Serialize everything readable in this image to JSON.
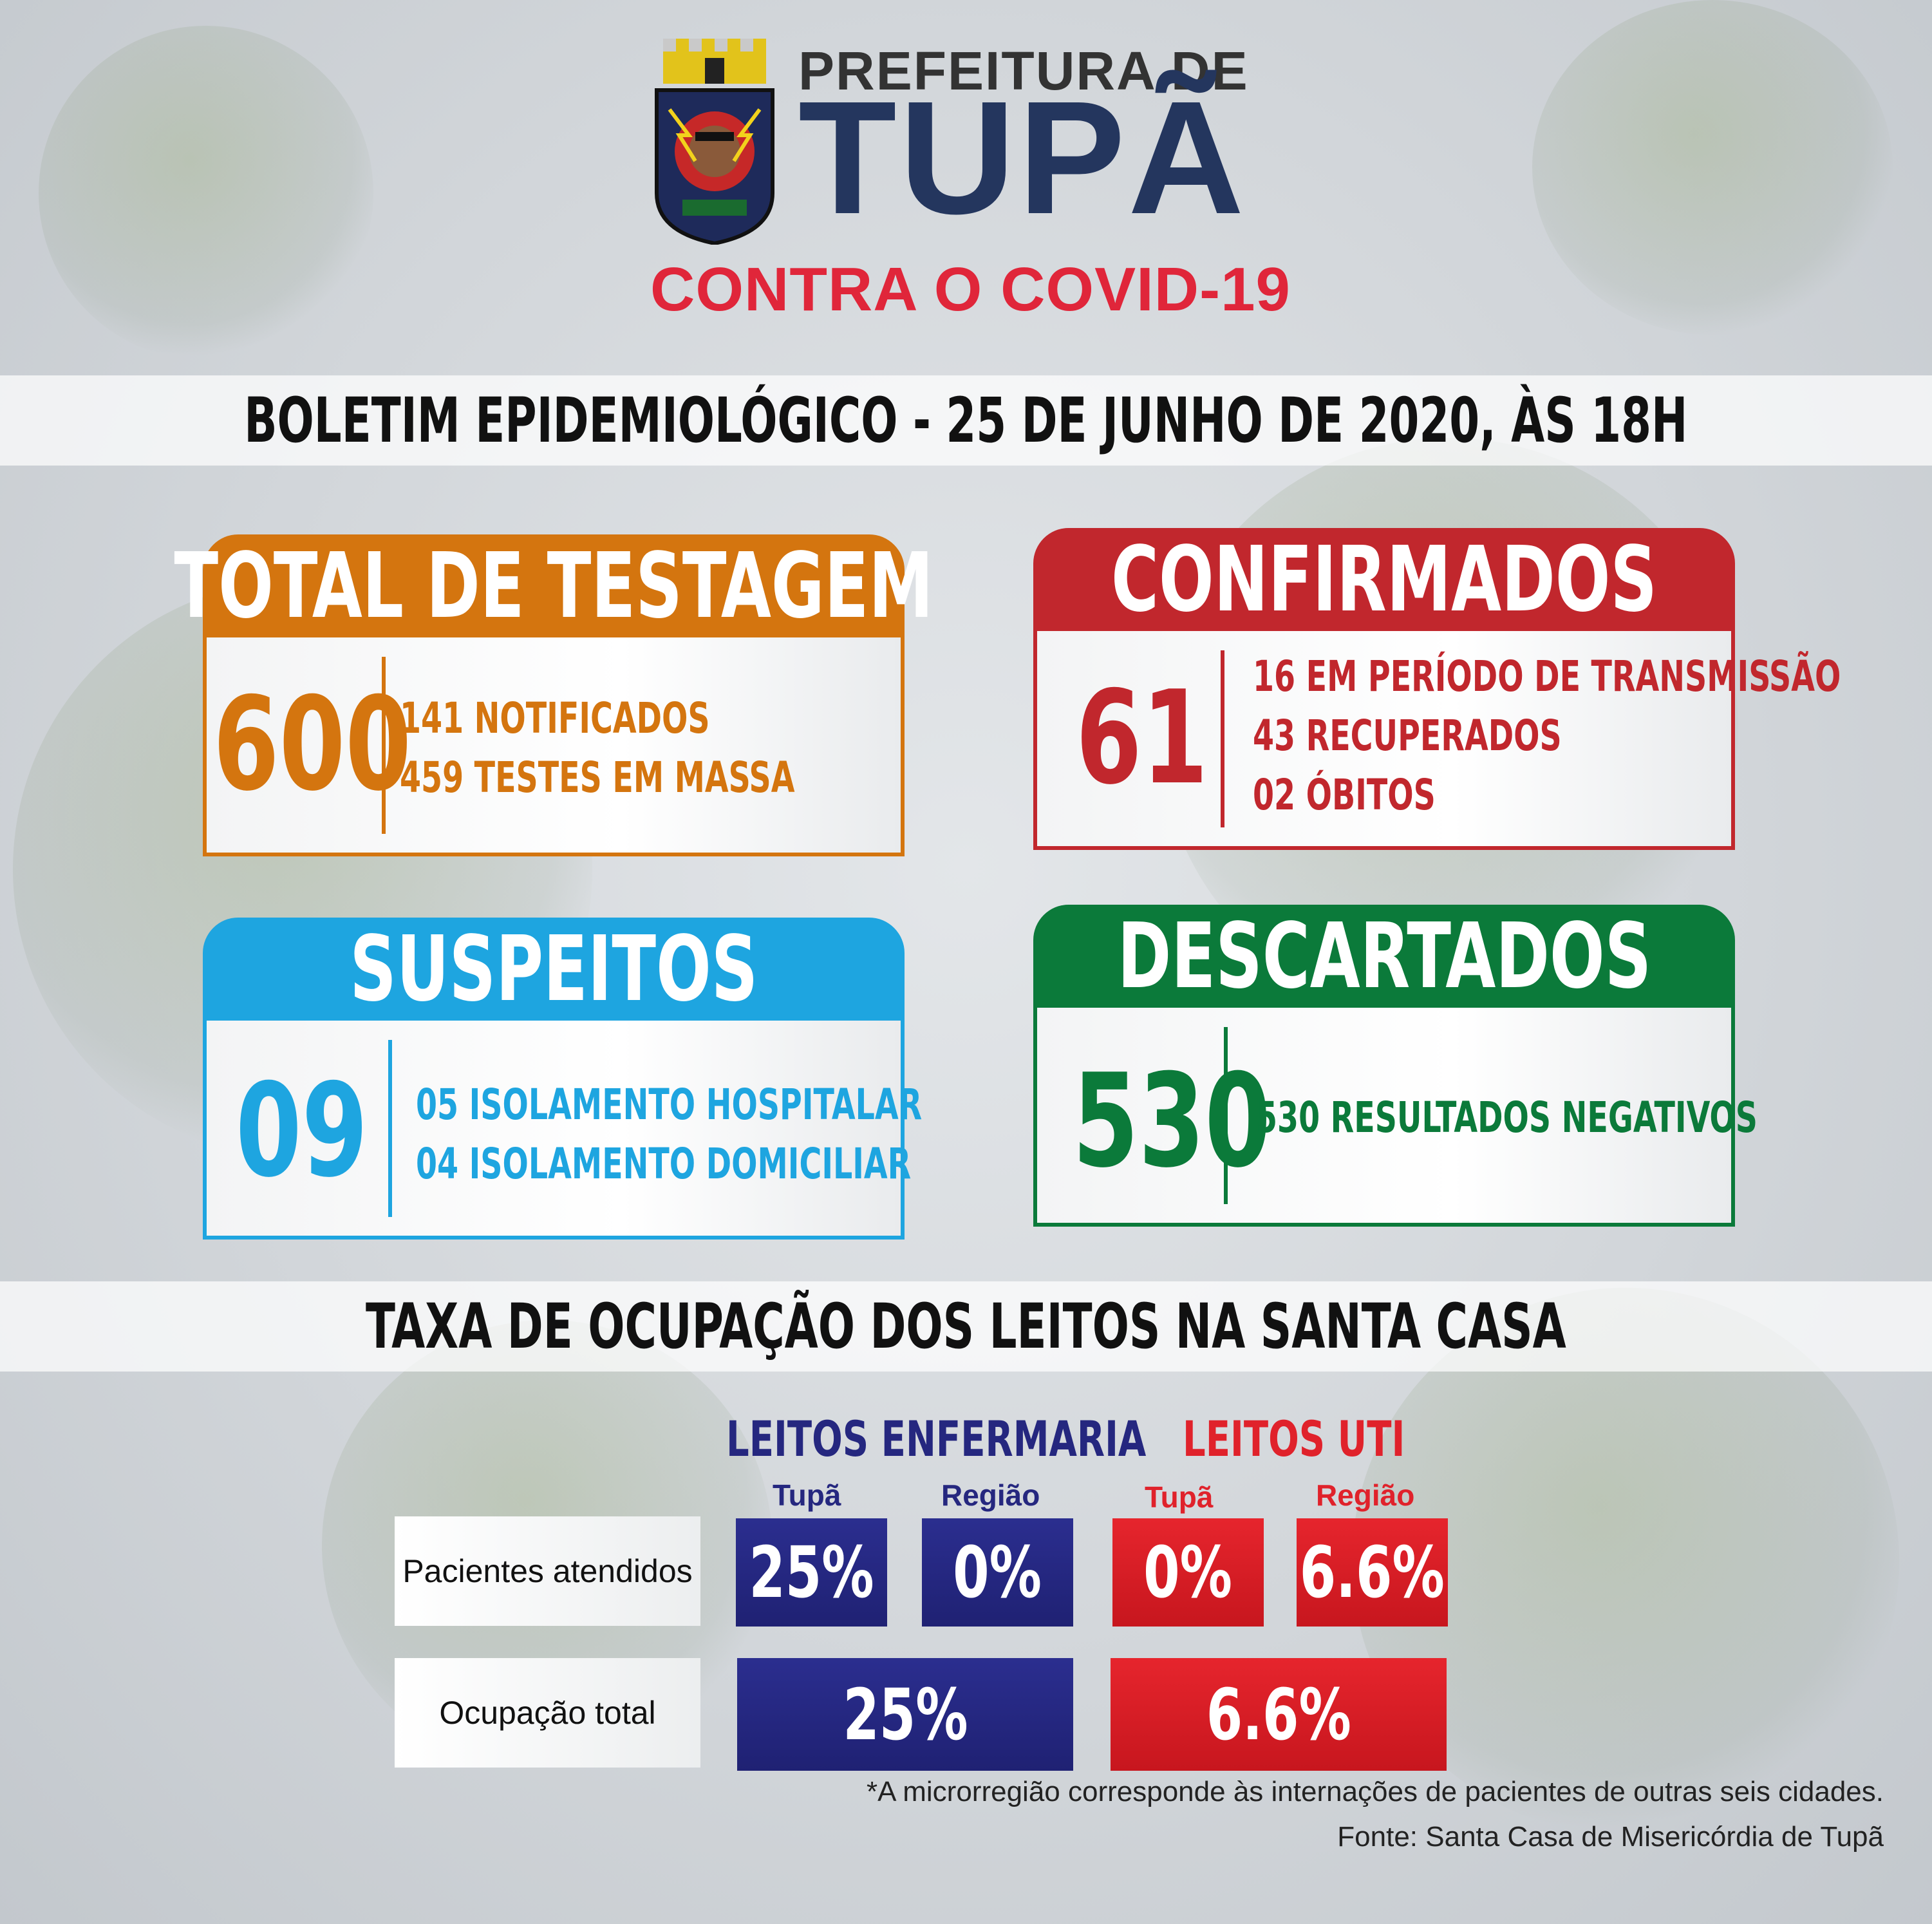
{
  "colors": {
    "orange": "#d4750f",
    "red": "#c1272d",
    "blue": "#1ea5e0",
    "green": "#0b7a3a",
    "navy": "#25277f",
    "uti_red": "#e0222b",
    "brand_navy": "#24365e",
    "brand_red": "#e0263a"
  },
  "header": {
    "line1": "PREFEITURA DE",
    "line2": "TUPÃ",
    "line3": "CONTRA O COVID-19",
    "crest_icon": "city-coat-of-arms"
  },
  "bulletin_title": "BOLETIM EPIDEMIOLÓGICO - 25 DE JUNHO DE 2020, ÀS 18H",
  "cards": {
    "testagem": {
      "title": "TOTAL DE TESTAGEM",
      "value": "600",
      "lines": [
        "141 NOTIFICADOS",
        "459 TESTES EM MASSA"
      ]
    },
    "confirmados": {
      "title": "CONFIRMADOS",
      "value": "61",
      "lines": [
        "16 EM PERÍODO DE TRANSMISSÃO",
        "43 RECUPERADOS",
        "02 ÓBITOS"
      ]
    },
    "suspeitos": {
      "title": "SUSPEITOS",
      "value": "09",
      "lines": [
        "05 ISOLAMENTO HOSPITALAR",
        "04 ISOLAMENTO DOMICILIAR"
      ]
    },
    "descartados": {
      "title": "DESCARTADOS",
      "value": "530",
      "lines": [
        "530 RESULTADOS NEGATIVOS"
      ]
    }
  },
  "occupancy": {
    "title": "TAXA DE OCUPAÇÃO DOS LEITOS NA SANTA CASA",
    "enfermaria_header": "LEITOS ENFERMARIA",
    "uti_header": "LEITOS UTI",
    "sub_tupa": "Tupã",
    "sub_regiao": "Região",
    "row1_label": "Pacientes atendidos",
    "row2_label": "Ocupação total",
    "enf_tupa": "25%",
    "enf_regiao": "0%",
    "uti_tupa": "0%",
    "uti_regiao": "6.6%",
    "enf_total": "25%",
    "uti_total": "6.6%"
  },
  "footnote": "*A microrregião corresponde às internações de pacientes de outras seis cidades.",
  "source": "Fonte: Santa Casa de Misericórdia de Tupã"
}
